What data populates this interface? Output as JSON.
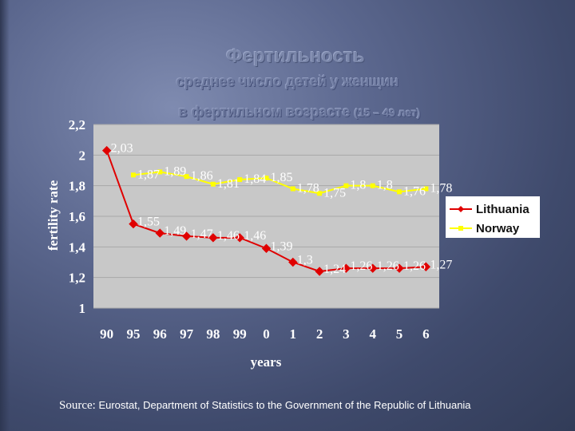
{
  "title": "Фертильность",
  "subtitle": "среднее число детей у женщин",
  "subtitle2": "в фертильном возрасте",
  "subtitle2_range": "(15 – 49 лет)",
  "source_label": "Source:",
  "source_text": "Eurostat, Department of Statistics to the Government of the Republic of Lithuania",
  "colors": {
    "plot_bg": "#c8c8c8",
    "lithuania": "#e00000",
    "norway": "#ffff00"
  },
  "chart_data": {
    "type": "line",
    "xlabel": "years",
    "ylabel": "fertility rate",
    "ylim": [
      1,
      2.2
    ],
    "y_ticks": [
      "1",
      "1,2",
      "1,4",
      "1,6",
      "1,8",
      "2",
      "2,2"
    ],
    "categories": [
      "90",
      "95",
      "96",
      "97",
      "98",
      "99",
      "0",
      "1",
      "2",
      "3",
      "4",
      "5",
      "6"
    ],
    "legend_position": "right",
    "grid": "horizontal",
    "series": [
      {
        "name": "Lithuania",
        "color": "#e00000",
        "marker": "diamond",
        "values": [
          2.03,
          1.55,
          1.49,
          1.47,
          1.46,
          1.46,
          1.39,
          1.3,
          1.24,
          1.26,
          1.26,
          1.26,
          1.27
        ],
        "labels": [
          "2,03",
          "1,55",
          "1,49",
          "1,47",
          "1,46",
          "1,46",
          "1,39",
          "1,3",
          "1,24",
          "1,26",
          "1,26",
          "1,26",
          "1,27"
        ]
      },
      {
        "name": "Norway",
        "color": "#ffff00",
        "marker": "square",
        "values": [
          null,
          1.87,
          1.89,
          1.86,
          1.81,
          1.84,
          1.85,
          1.78,
          1.75,
          1.8,
          1.8,
          1.76,
          1.78
        ],
        "labels": [
          null,
          "1,87",
          "1,89",
          "1,86",
          "1,81",
          "1,84",
          "1,85",
          "1,78",
          "1,75",
          "1,8",
          "1,8",
          "1,76",
          "1,78"
        ]
      }
    ]
  }
}
